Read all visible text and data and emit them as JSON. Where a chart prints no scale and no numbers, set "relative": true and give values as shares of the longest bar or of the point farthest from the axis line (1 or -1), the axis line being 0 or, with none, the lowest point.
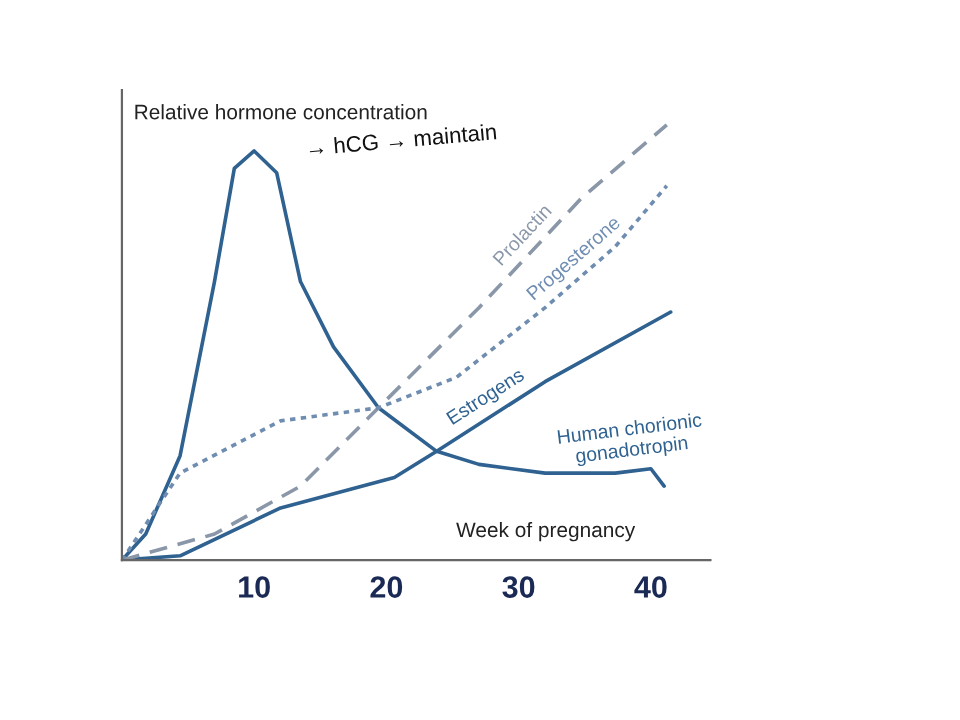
{
  "chart_data": {
    "type": "line",
    "relative": true,
    "xlabel": "Week of pregnancy",
    "ylabel": "Relative hormone concentration",
    "xlim": [
      0,
      44.5
    ],
    "xticks": [
      10,
      20,
      30,
      40
    ],
    "grid": false,
    "legend": false,
    "marker": "none",
    "annotations": [
      "→ hCG → maintain"
    ],
    "series": [
      {
        "name": "Human chorionic\ngonadotropin",
        "color": "#2f6290",
        "line_style": "solid",
        "x": [
          0,
          1.8,
          4.4,
          7,
          8.5,
          10,
          11.7,
          13.5,
          16,
          19.4,
          23.8,
          27,
          32,
          37.3,
          40,
          41
        ],
        "values": [
          0,
          0.06,
          0.24,
          0.64,
          0.9,
          0.94,
          0.89,
          0.64,
          0.49,
          0.35,
          0.25,
          0.22,
          0.2,
          0.2,
          0.21,
          0.17
        ]
      },
      {
        "name": "Estrogens",
        "color": "#2f6290",
        "line_style": "solid",
        "x": [
          0,
          4.4,
          12,
          20.6,
          23.8,
          32,
          41.5
        ],
        "values": [
          0,
          0.01,
          0.12,
          0.19,
          0.25,
          0.41,
          0.57
        ]
      },
      {
        "name": "Prolactin",
        "color": "#8a97a8",
        "line_style": "dashed",
        "x": [
          0,
          7,
          13.5,
          19.4,
          27,
          34.7,
          41.2
        ],
        "values": [
          0,
          0.06,
          0.17,
          0.35,
          0.58,
          0.83,
          1
        ]
      },
      {
        "name": "Progesterone",
        "color": "#6f8db0",
        "line_style": "dotted",
        "x": [
          0,
          4.4,
          12,
          19.4,
          25.3,
          32,
          37.3,
          41.2
        ],
        "values": [
          0,
          0.2,
          0.32,
          0.35,
          0.42,
          0.58,
          0.72,
          0.86
        ]
      }
    ]
  }
}
